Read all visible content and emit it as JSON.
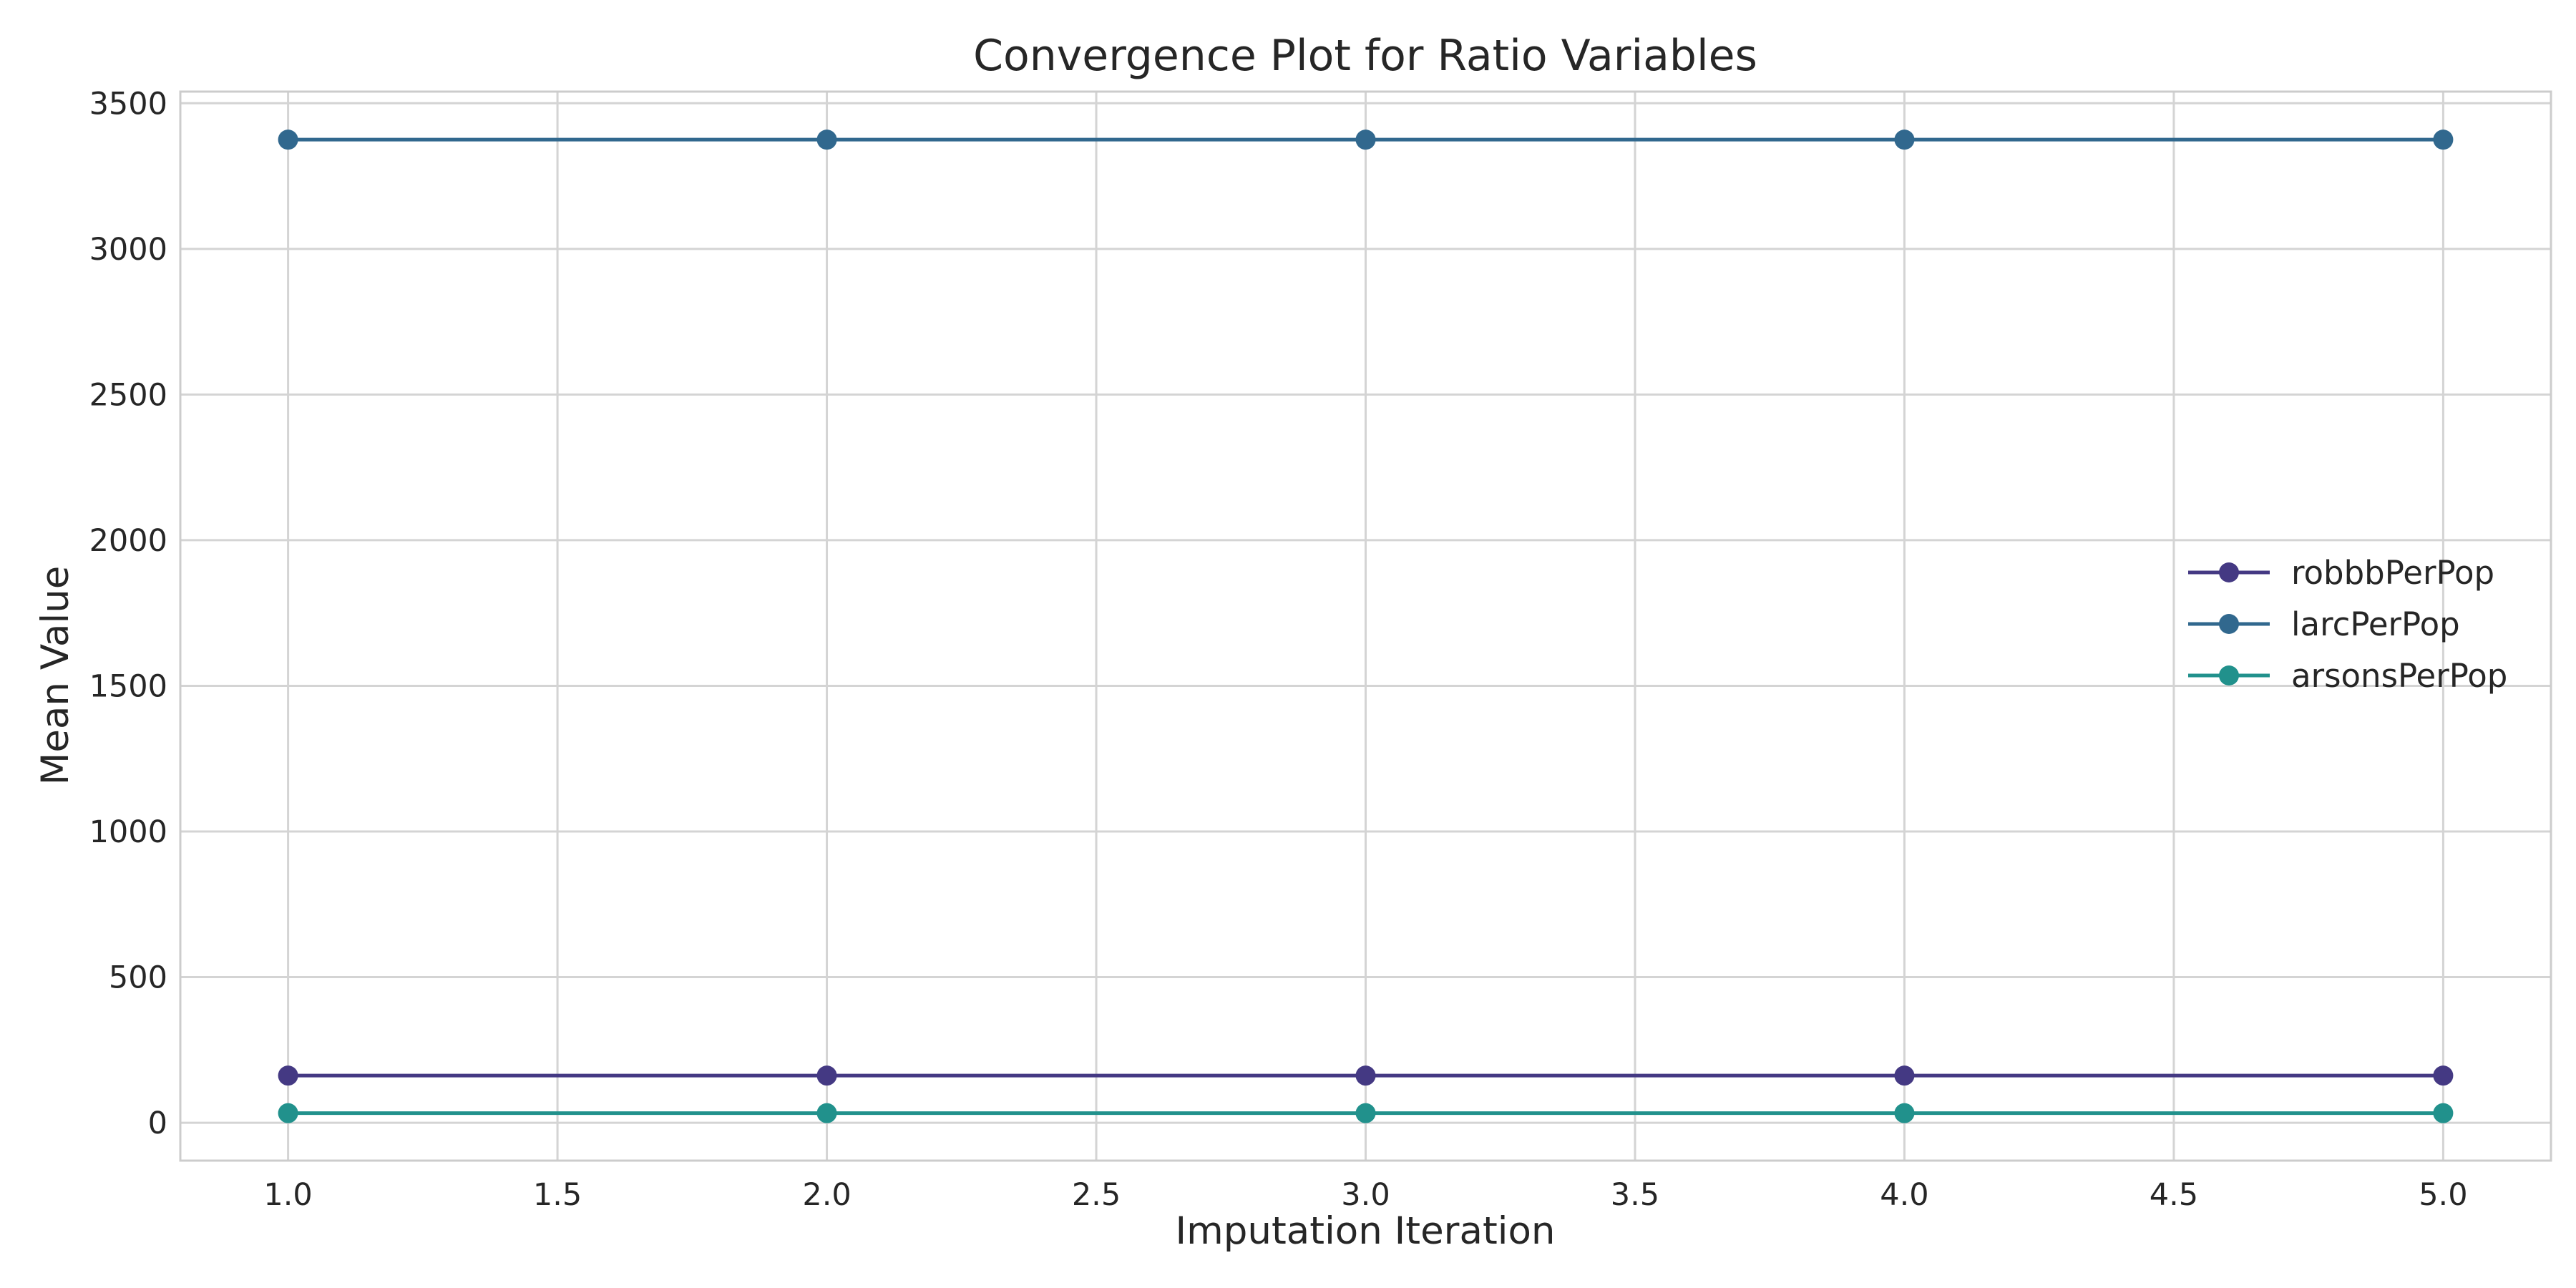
{
  "chart_data": {
    "type": "line",
    "title": "Convergence Plot for Ratio Variables",
    "xlabel": "Imputation Iteration",
    "ylabel": "Mean Value",
    "x": [
      1,
      2,
      3,
      4,
      5
    ],
    "xlim": [
      0.8,
      5.2
    ],
    "ylim": [
      -130,
      3540
    ],
    "xticks": [
      "1.0",
      "1.5",
      "2.0",
      "2.5",
      "3.0",
      "3.5",
      "4.0",
      "4.5",
      "5.0"
    ],
    "xtick_values": [
      1,
      1.5,
      2,
      2.5,
      3,
      3.5,
      4,
      4.5,
      5
    ],
    "yticks": [
      "0",
      "500",
      "1000",
      "1500",
      "2000",
      "2500",
      "3000",
      "3500"
    ],
    "ytick_values": [
      0,
      500,
      1000,
      1500,
      2000,
      2500,
      3000,
      3500
    ],
    "grid": true,
    "legend_position": "center-right",
    "series": [
      {
        "name": "robbbPerPop",
        "color": "#443983",
        "values": [
          162,
          162,
          162,
          162,
          162
        ]
      },
      {
        "name": "larcPerPop",
        "color": "#31688e",
        "values": [
          3375,
          3375,
          3375,
          3375,
          3375
        ]
      },
      {
        "name": "arsonsPerPop",
        "color": "#21918c",
        "values": [
          33,
          33,
          33,
          33,
          33
        ]
      }
    ]
  }
}
